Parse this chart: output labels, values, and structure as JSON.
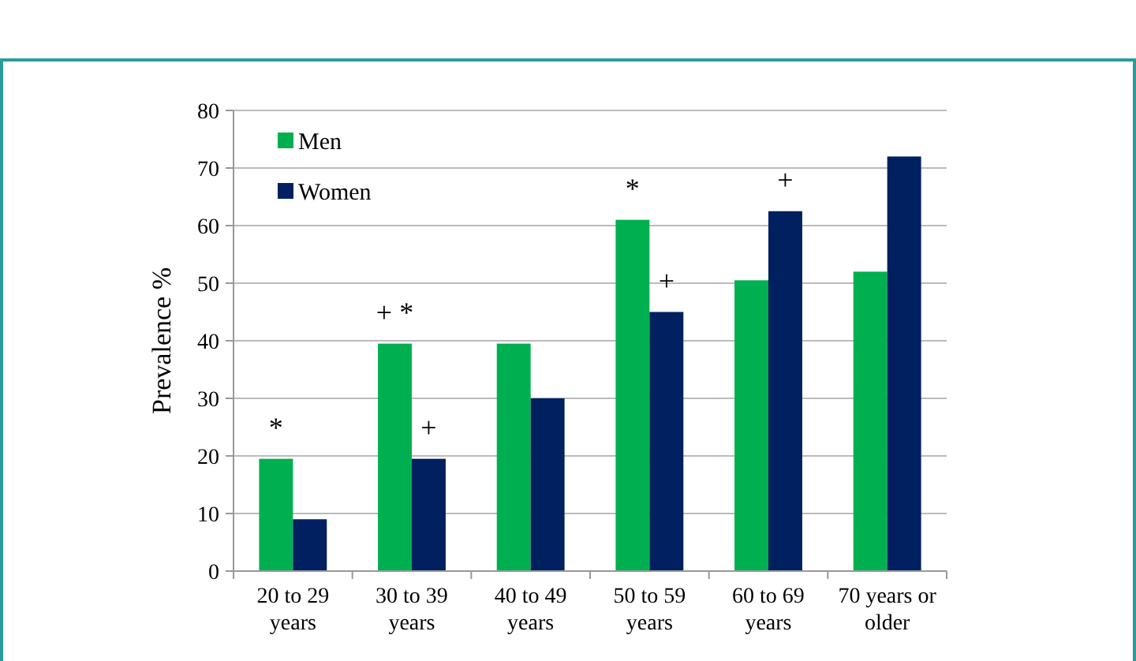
{
  "chart_data": {
    "type": "bar",
    "ylabel": "Prevalence %",
    "categories": [
      "20 to 29 years",
      "30 to 39 years",
      "40 to 49 years",
      "50  to 59 years",
      "60 to 69 years",
      "70 years or older"
    ],
    "series": [
      {
        "name": "Men",
        "color": "#00b050",
        "values": [
          19.5,
          39.5,
          39.5,
          61,
          50.5,
          52
        ]
      },
      {
        "name": "Women",
        "color": "#002060",
        "values": [
          9,
          19.5,
          30,
          45,
          62.5,
          72
        ]
      }
    ],
    "ylim": [
      0,
      80
    ],
    "yticks": [
      0,
      10,
      20,
      30,
      40,
      50,
      60,
      70,
      80
    ],
    "grid": "y",
    "legend": "top left",
    "annotations": [
      {
        "text": "*",
        "x": "20 to 29 years",
        "y": 19.5
      },
      {
        "text": "+ *",
        "x": "30 to 39 years",
        "y": 39.5
      },
      {
        "text": "+",
        "x": "30 to 39 years",
        "y": 19.5
      },
      {
        "text": "*",
        "x": "50  to 59 years",
        "y": 61
      },
      {
        "text": "+",
        "x": "50  to 59 years",
        "y": 45
      },
      {
        "text": "+",
        "x": "60 to 69 years",
        "y": 62.5
      }
    ]
  }
}
